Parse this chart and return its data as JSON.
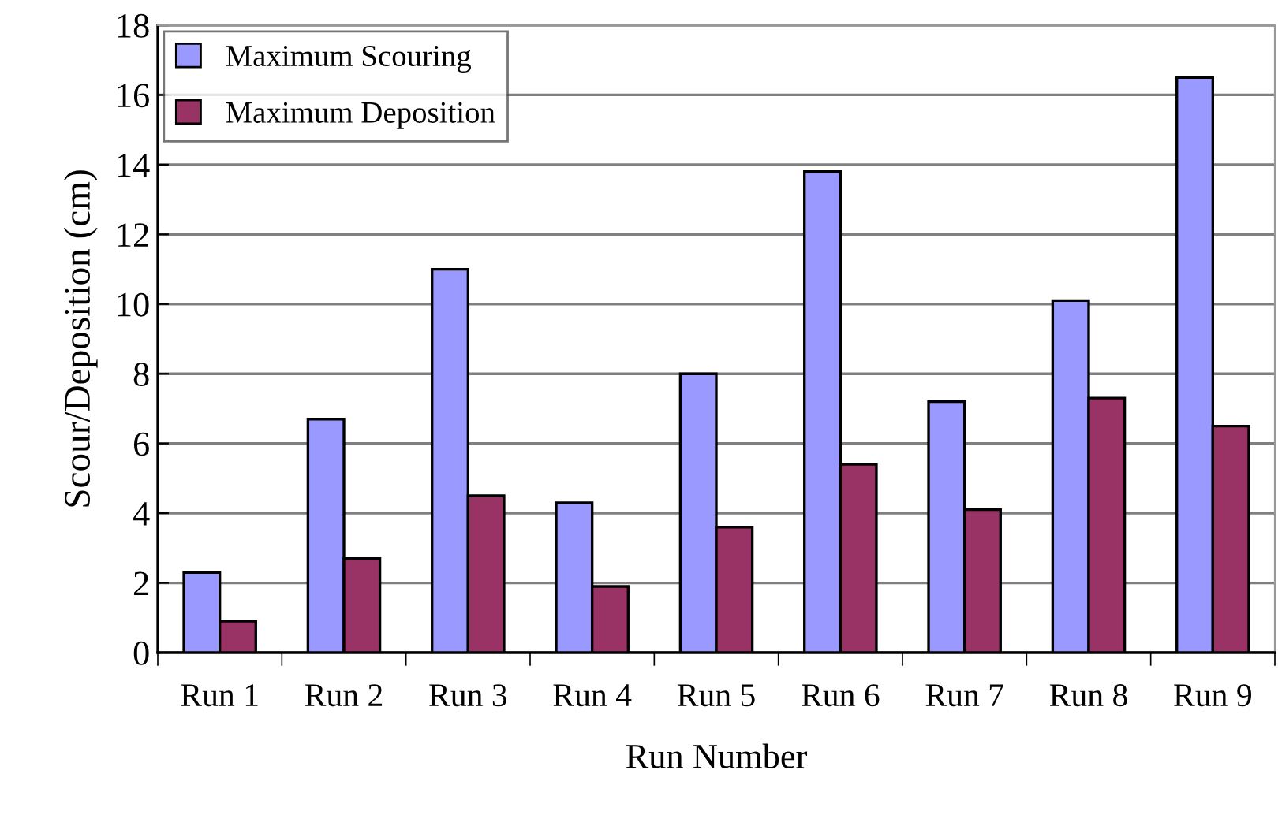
{
  "chart_data": {
    "type": "bar",
    "xlabel": "Run Number",
    "ylabel": "Scour/Deposition (cm)",
    "categories": [
      "Run 1",
      "Run 2",
      "Run 3",
      "Run 4",
      "Run 5",
      "Run 6",
      "Run 7",
      "Run 8",
      "Run 9"
    ],
    "series": [
      {
        "name": "Maximum Scouring",
        "color": "#9999ff",
        "values": [
          2.3,
          6.7,
          11.0,
          4.3,
          8.0,
          13.8,
          7.2,
          10.1,
          16.5
        ]
      },
      {
        "name": "Maximum Deposition",
        "color": "#993366",
        "values": [
          0.9,
          2.7,
          4.5,
          1.9,
          3.6,
          5.4,
          4.1,
          7.3,
          6.5
        ]
      }
    ],
    "ylim": [
      0,
      18
    ],
    "yticks": [
      0,
      2,
      4,
      6,
      8,
      10,
      12,
      14,
      16,
      18
    ],
    "grid": "y",
    "legend": "top left"
  }
}
